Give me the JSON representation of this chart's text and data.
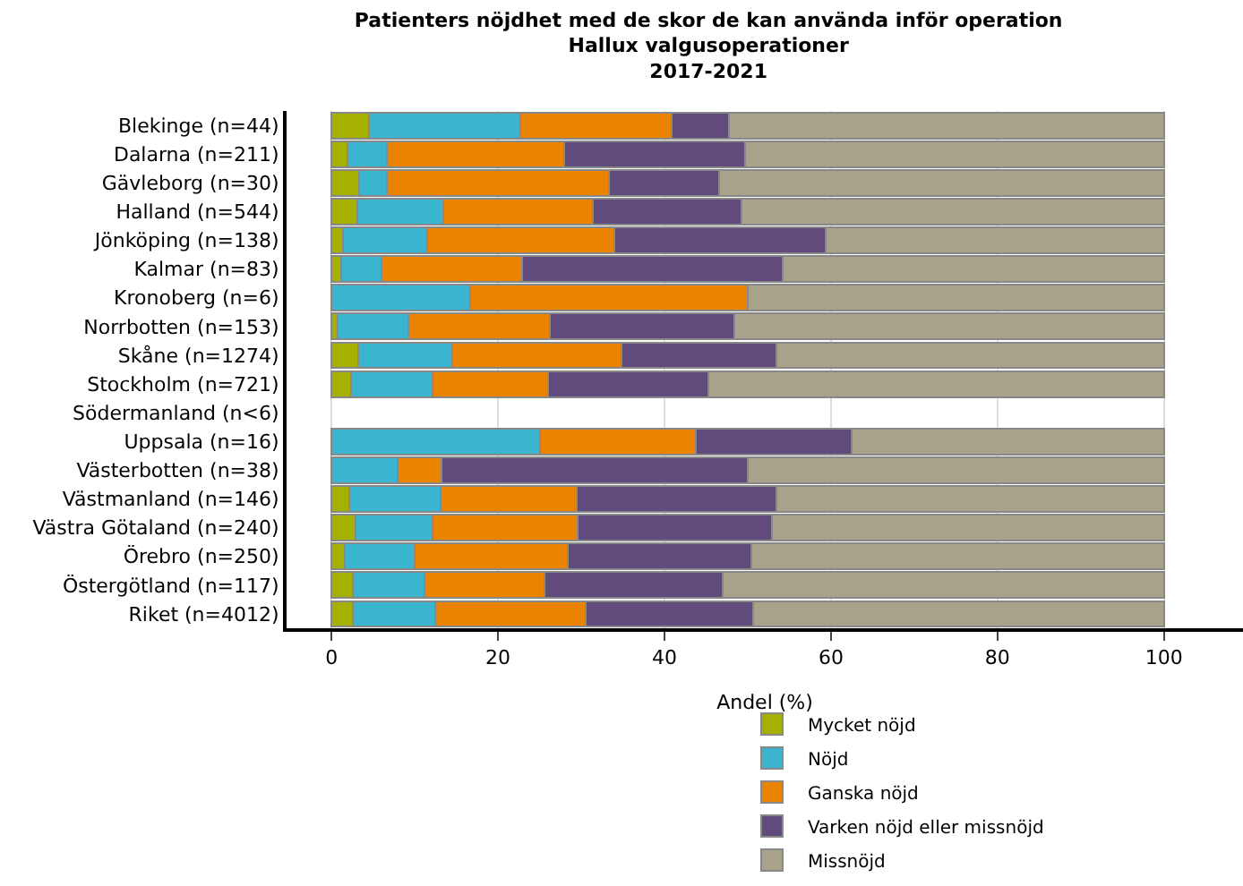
{
  "chart_data": {
    "type": "bar",
    "orientation": "horizontal",
    "stacked": true,
    "title": "Patienters nöjdhet med de skor de kan använda inför operation\nHallux valgusoperationer\n2017-2021",
    "xlabel": "Andel (%)",
    "categories": [
      "Blekinge (n=44)",
      "Dalarna (n=211)",
      "Gävleborg (n=30)",
      "Halland (n=544)",
      "Jönköping (n=138)",
      "Kalmar (n=83)",
      "Kronoberg (n=6)",
      "Norrbotten (n=153)",
      "Skåne (n=1274)",
      "Stockholm (n=721)",
      "Södermanland (n<6)",
      "Uppsala (n=16)",
      "Västerbotten (n=38)",
      "Västmanland (n=146)",
      "Västra Götaland (n=240)",
      "Örebro (n=250)",
      "Östergötland (n=117)",
      "Riket (n=4012)"
    ],
    "series": [
      {
        "name": "Mycket nöjd",
        "color": "#a5b000",
        "values": [
          4.5,
          1.9,
          3.3,
          3.1,
          1.4,
          1.2,
          0,
          0.7,
          3.2,
          2.3,
          null,
          0,
          0,
          2.1,
          2.9,
          1.6,
          2.6,
          2.6
        ]
      },
      {
        "name": "Nöjd",
        "color": "#3bb5cf",
        "values": [
          18.2,
          4.7,
          3.3,
          10.3,
          10.1,
          4.8,
          16.7,
          8.5,
          11.3,
          9.8,
          null,
          25.0,
          7.9,
          11.0,
          9.2,
          8.4,
          8.6,
          9.9
        ]
      },
      {
        "name": "Ganska nöjd",
        "color": "#e98300",
        "values": [
          18.2,
          21.3,
          26.7,
          18.0,
          22.5,
          16.9,
          33.3,
          17.0,
          20.3,
          13.9,
          null,
          18.8,
          5.3,
          16.4,
          17.5,
          18.4,
          14.4,
          18.0
        ]
      },
      {
        "name": "Varken nöjd eller missnöjd",
        "color": "#614b7d",
        "values": [
          6.8,
          21.8,
          13.3,
          17.8,
          25.4,
          31.3,
          0,
          22.2,
          18.6,
          19.3,
          null,
          18.7,
          36.8,
          24.0,
          23.3,
          22.0,
          21.4,
          20.1
        ]
      },
      {
        "name": "Missnöjd",
        "color": "#a8a28b",
        "values": [
          52.3,
          50.3,
          53.4,
          50.8,
          40.6,
          45.8,
          50.0,
          51.6,
          46.6,
          54.7,
          null,
          37.5,
          50.0,
          46.5,
          47.1,
          49.6,
          53.0,
          49.4
        ]
      }
    ],
    "xlim": [
      -5.4,
      109.5
    ],
    "xticks": [
      0,
      20,
      40,
      60,
      80,
      100
    ],
    "grid": "x",
    "legend": "bottom"
  }
}
